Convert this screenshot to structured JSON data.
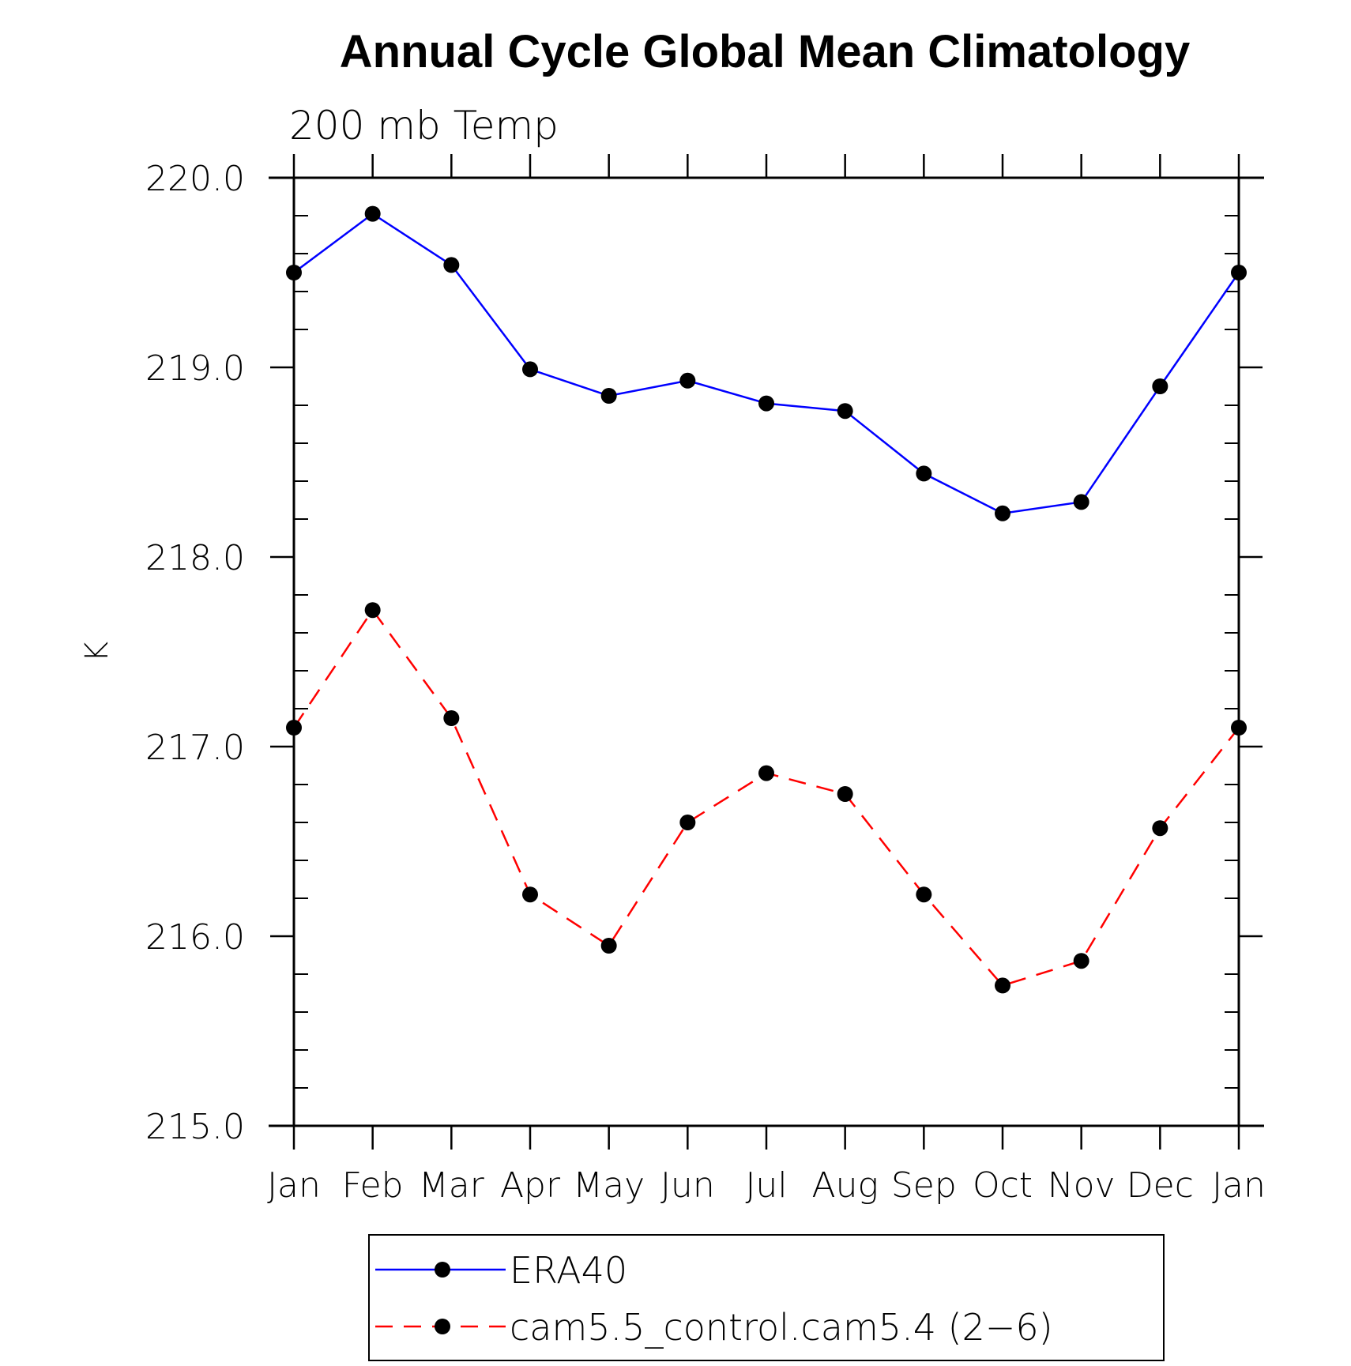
{
  "chart_data": {
    "type": "line",
    "title": "Annual Cycle Global Mean Climatology",
    "subtitle": "200 mb Temp",
    "xlabel": "",
    "ylabel": "K",
    "categories": [
      "Jan",
      "Feb",
      "Mar",
      "Apr",
      "May",
      "Jun",
      "Jul",
      "Aug",
      "Sep",
      "Oct",
      "Nov",
      "Dec",
      "Jan"
    ],
    "ylim": [
      215.0,
      220.0
    ],
    "yticks": [
      "215.0",
      "216.0",
      "217.0",
      "218.0",
      "219.0",
      "220.0"
    ],
    "grid": false,
    "legend_position": "bottom",
    "series": [
      {
        "name": "ERA40",
        "color": "#0000ff",
        "line_style": "solid",
        "marker": "filled-circle",
        "values": [
          219.5,
          219.81,
          219.54,
          218.99,
          218.85,
          218.93,
          218.81,
          218.77,
          218.44,
          218.23,
          218.29,
          218.9,
          219.5
        ]
      },
      {
        "name": "cam5.5_control.cam5.4 (2−6)",
        "color": "#ff0000",
        "line_style": "dashed",
        "marker": "filled-circle",
        "values": [
          217.1,
          217.72,
          217.15,
          216.22,
          215.95,
          216.6,
          216.86,
          216.75,
          216.22,
          215.74,
          215.87,
          216.57,
          217.1
        ]
      }
    ]
  }
}
